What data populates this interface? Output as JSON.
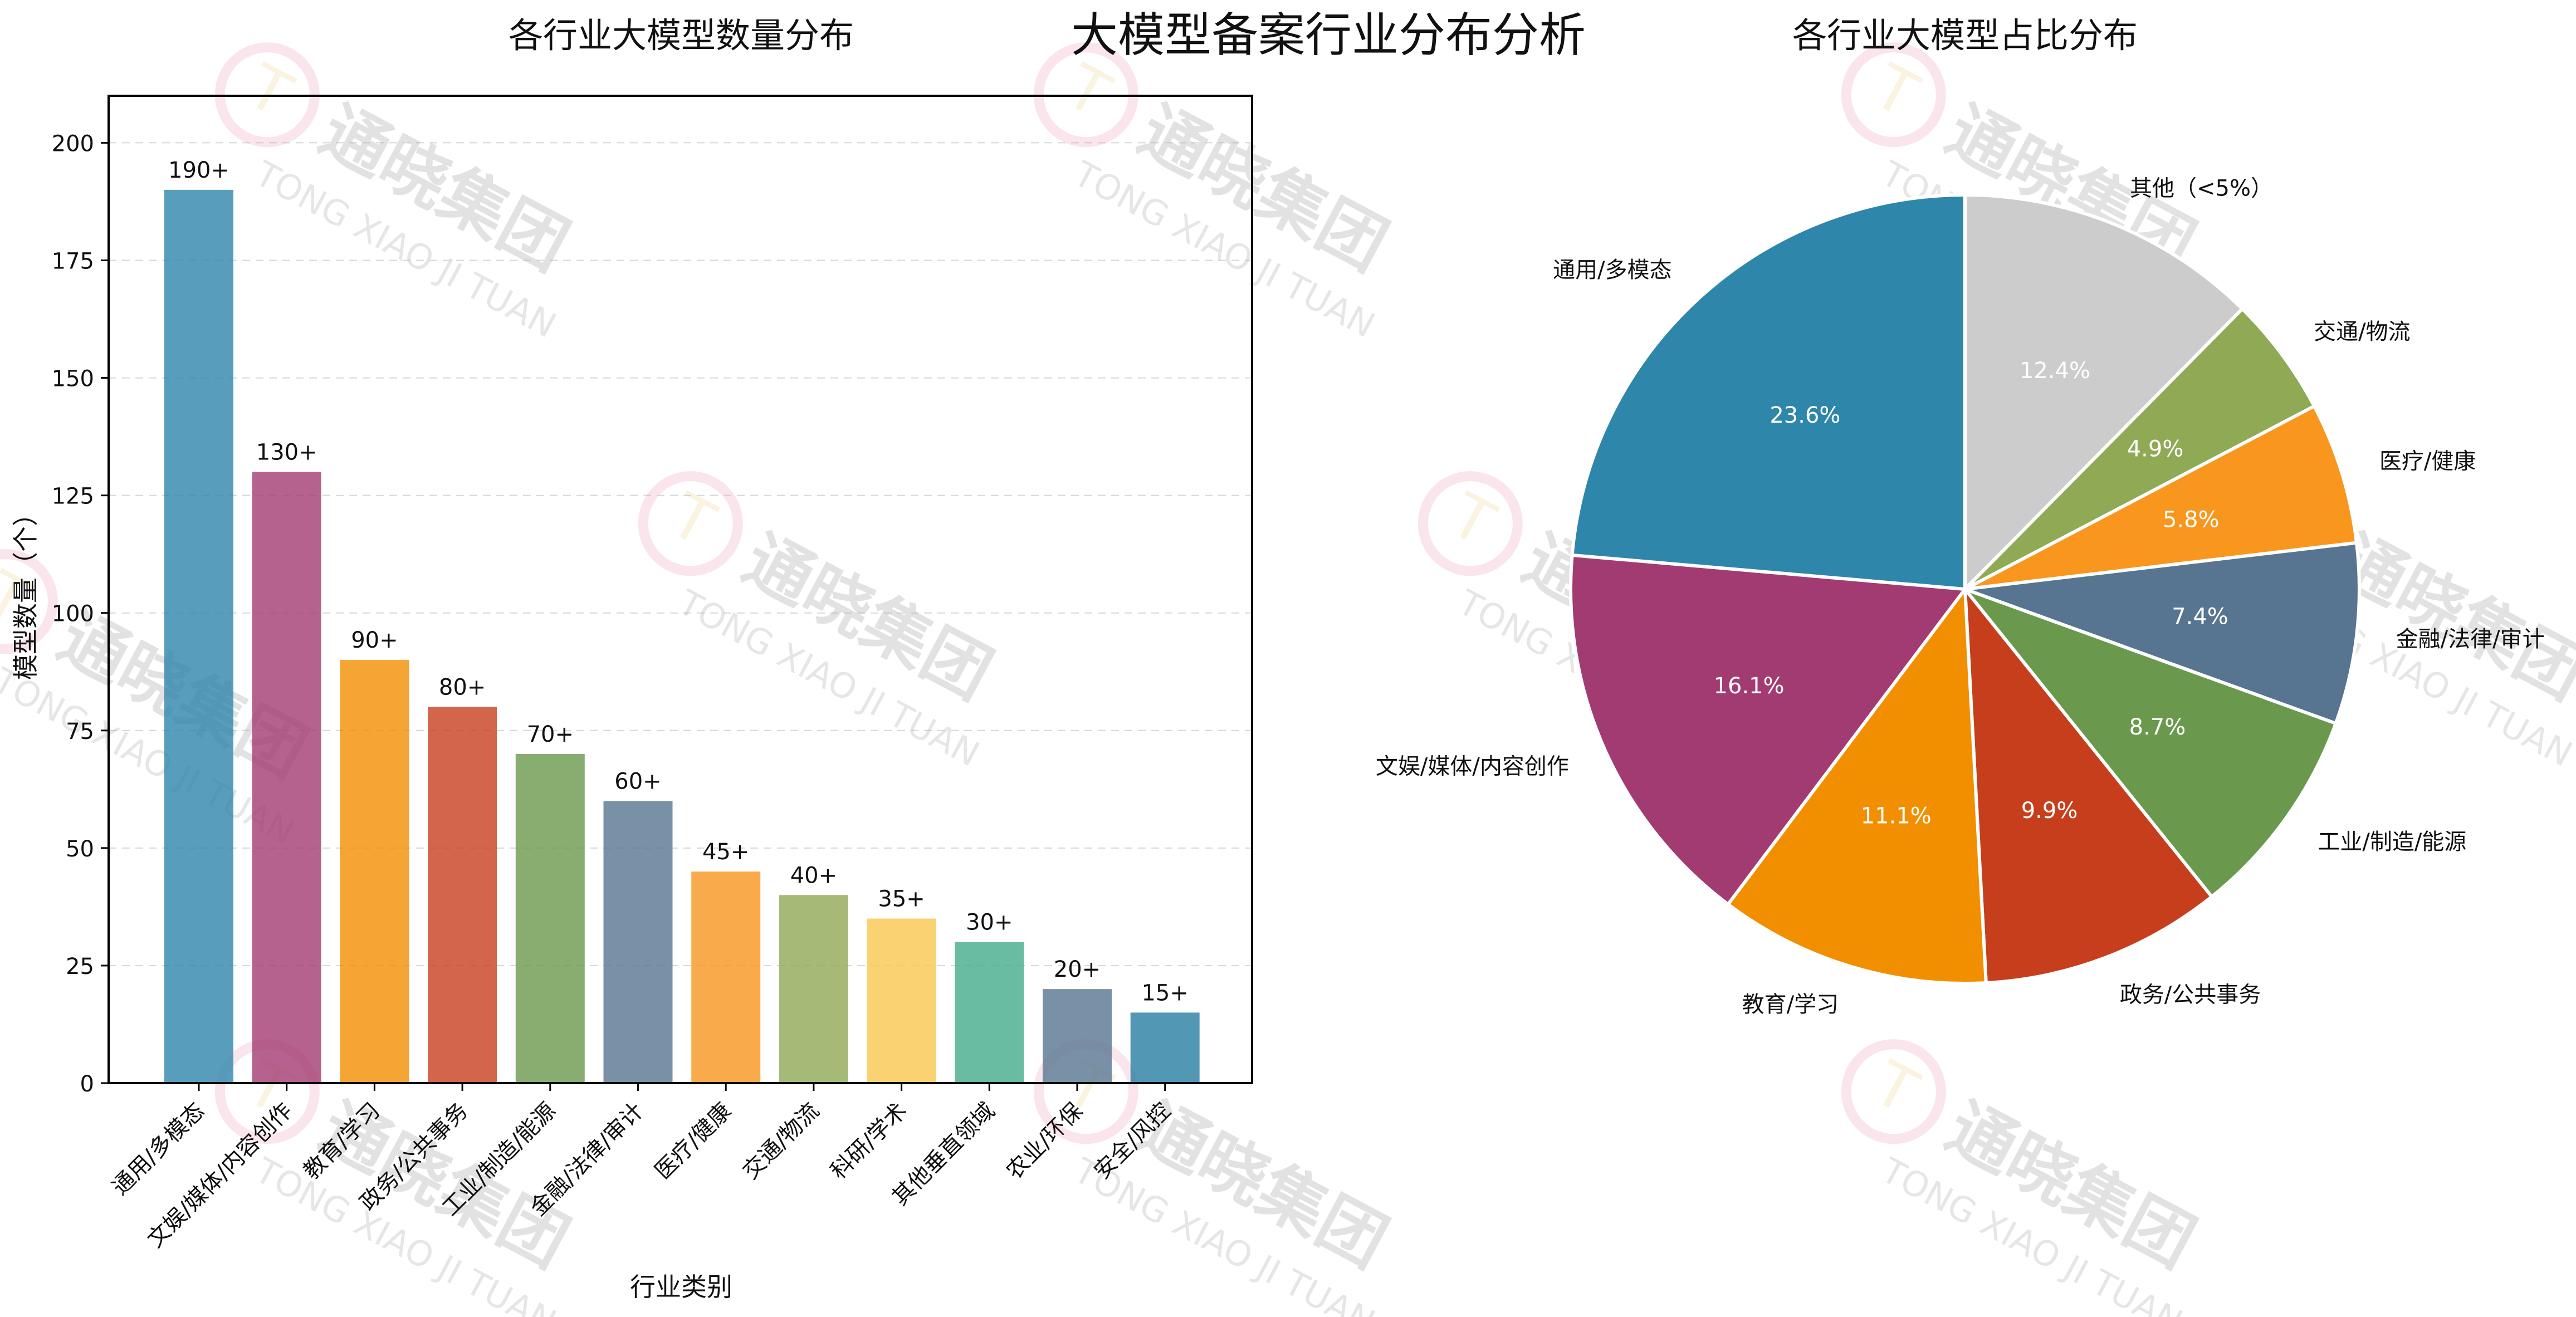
{
  "page": {
    "main_title": "大模型备案行业分布分析"
  },
  "watermark": {
    "brand_cn": "通晓集团",
    "brand_en": "TONG XIAO JI TUAN",
    "logo_letter": "T"
  },
  "chart_data": [
    {
      "type": "bar",
      "title": "各行业大模型数量分布",
      "xlabel": "行业类别",
      "ylabel": "模型数量（个）",
      "ylim": [
        0,
        210
      ],
      "yticks": [
        0,
        25,
        50,
        75,
        100,
        125,
        150,
        175,
        200
      ],
      "grid": "y-dashed",
      "categories": [
        "通用/多模态",
        "文娱/媒体/内容创作",
        "教育/学习",
        "政务/公共事务",
        "工业/制造/能源",
        "金融/法律/审计",
        "医疗/健康",
        "交通/物流",
        "科研/学术",
        "其他垂直领域",
        "农业/环保",
        "安全/风控"
      ],
      "values": [
        190,
        130,
        90,
        80,
        70,
        60,
        45,
        40,
        35,
        30,
        20,
        15
      ],
      "data_labels": [
        "190+",
        "130+",
        "90+",
        "80+",
        "70+",
        "60+",
        "45+",
        "40+",
        "35+",
        "30+",
        "20+",
        "15+"
      ],
      "colors": [
        "#2e86ab",
        "#a23b72",
        "#f18f01",
        "#c73e1d",
        "#6a994e",
        "#577590",
        "#f8961e",
        "#90a955",
        "#f9c74f",
        "#43aa8b",
        "#577590",
        "#277da1"
      ]
    },
    {
      "type": "pie",
      "title": "各行业大模型占比分布",
      "start_angle_deg": 90,
      "direction": "clockwise",
      "labels": [
        "其他（<5%）",
        "交通/物流",
        "医疗/健康",
        "金融/法律/审计",
        "工业/制造/能源",
        "政务/公共事务",
        "教育/学习",
        "文娱/媒体/内容创作",
        "通用/多模态"
      ],
      "values": [
        12.4,
        4.9,
        5.8,
        7.4,
        8.7,
        9.9,
        11.1,
        16.1,
        23.6
      ],
      "pct_labels": [
        "12.4%",
        "4.9%",
        "5.8%",
        "7.4%",
        "8.7%",
        "9.9%",
        "11.1%",
        "16.1%",
        "23.6%"
      ],
      "colors": [
        "#cccccc",
        "#90a955",
        "#f8961e",
        "#577590",
        "#6a994e",
        "#c73e1d",
        "#f18f01",
        "#a23b72",
        "#2e86ab"
      ]
    }
  ]
}
